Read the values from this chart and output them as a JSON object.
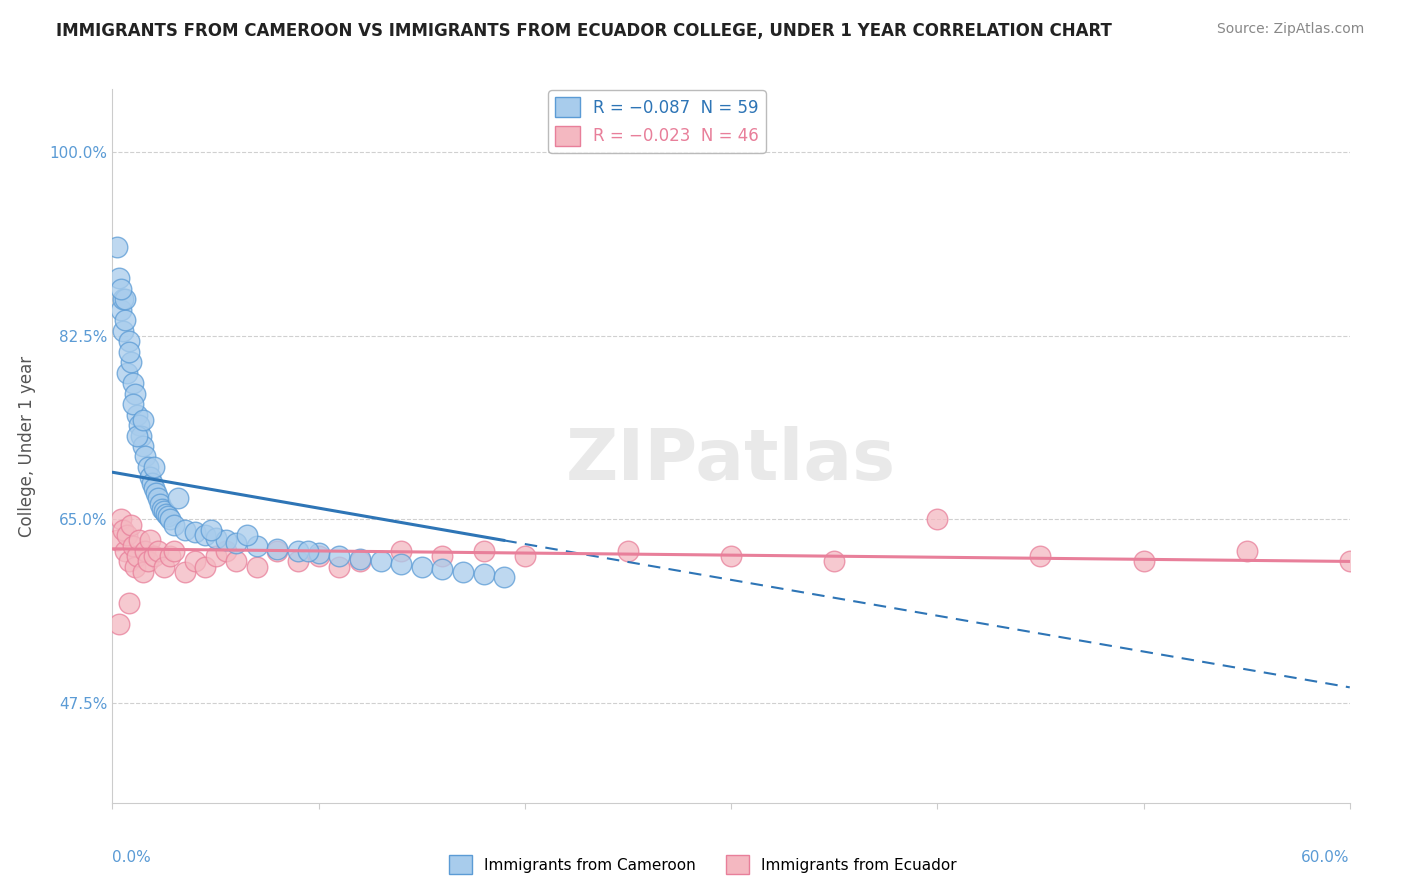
{
  "title": "IMMIGRANTS FROM CAMEROON VS IMMIGRANTS FROM ECUADOR COLLEGE, UNDER 1 YEAR CORRELATION CHART",
  "source": "Source: ZipAtlas.com",
  "ylabel": "College, Under 1 year",
  "yticks": [
    47.5,
    65.0,
    82.5,
    100.0
  ],
  "ytick_labels": [
    "47.5%",
    "65.0%",
    "82.5%",
    "100.0%"
  ],
  "xlim": [
    0.0,
    60.0
  ],
  "ylim": [
    38.0,
    106.0
  ],
  "blue_color": "#a8ccec",
  "blue_edge": "#5b9bd5",
  "pink_color": "#f4b8c1",
  "pink_edge": "#e87f9a",
  "blue_line_color": "#2e75b6",
  "pink_line_color": "#e87f9a",
  "background": "#ffffff",
  "grid_color": "#d0d0d0",
  "watermark_text": "ZIPatlas",
  "cameroon_x": [
    0.2,
    0.3,
    0.4,
    0.5,
    0.5,
    0.6,
    0.7,
    0.8,
    0.9,
    1.0,
    1.1,
    1.2,
    1.3,
    1.4,
    1.5,
    1.6,
    1.7,
    1.8,
    1.9,
    2.0,
    2.1,
    2.2,
    2.3,
    2.4,
    2.5,
    2.6,
    2.7,
    2.8,
    3.0,
    3.5,
    4.0,
    4.5,
    5.0,
    5.5,
    6.0,
    7.0,
    8.0,
    9.0,
    10.0,
    11.0,
    12.0,
    13.0,
    14.0,
    15.0,
    16.0,
    17.0,
    18.0,
    19.0,
    1.0,
    1.2,
    0.8,
    0.6,
    2.0,
    1.5,
    0.4,
    3.2,
    4.8,
    6.5,
    9.5
  ],
  "cameroon_y": [
    91.0,
    88.0,
    85.0,
    86.0,
    83.0,
    84.0,
    79.0,
    82.0,
    80.0,
    78.0,
    77.0,
    75.0,
    74.0,
    73.0,
    72.0,
    71.0,
    70.0,
    69.0,
    68.5,
    68.0,
    67.5,
    67.0,
    66.5,
    66.0,
    65.8,
    65.5,
    65.3,
    65.0,
    64.5,
    64.0,
    63.8,
    63.5,
    63.2,
    63.0,
    62.8,
    62.5,
    62.2,
    62.0,
    61.8,
    61.5,
    61.2,
    61.0,
    60.8,
    60.5,
    60.3,
    60.0,
    59.8,
    59.5,
    76.0,
    73.0,
    81.0,
    86.0,
    70.0,
    74.5,
    87.0,
    67.0,
    64.0,
    63.5,
    62.0
  ],
  "ecuador_x": [
    0.2,
    0.4,
    0.5,
    0.6,
    0.7,
    0.8,
    0.9,
    1.0,
    1.1,
    1.2,
    1.3,
    1.5,
    1.6,
    1.7,
    1.8,
    2.0,
    2.2,
    2.5,
    2.8,
    3.0,
    3.5,
    4.0,
    4.5,
    5.0,
    5.5,
    6.0,
    7.0,
    8.0,
    9.0,
    10.0,
    11.0,
    12.0,
    14.0,
    16.0,
    18.0,
    20.0,
    25.0,
    30.0,
    35.0,
    40.0,
    45.0,
    50.0,
    55.0,
    60.0,
    0.3,
    0.8
  ],
  "ecuador_y": [
    63.0,
    65.0,
    64.0,
    62.0,
    63.5,
    61.0,
    64.5,
    62.5,
    60.5,
    61.5,
    63.0,
    60.0,
    62.0,
    61.0,
    63.0,
    61.5,
    62.0,
    60.5,
    61.5,
    62.0,
    60.0,
    61.0,
    60.5,
    61.5,
    62.0,
    61.0,
    60.5,
    62.0,
    61.0,
    61.5,
    60.5,
    61.0,
    62.0,
    61.5,
    62.0,
    61.5,
    62.0,
    61.5,
    61.0,
    65.0,
    61.5,
    61.0,
    62.0,
    61.0,
    55.0,
    57.0
  ],
  "cam_line_x0": 0.0,
  "cam_line_y0": 69.5,
  "cam_line_x1": 19.0,
  "cam_line_y1": 63.0,
  "ecu_line_x0": 0.0,
  "ecu_line_y0": 62.2,
  "ecu_line_x1": 60.0,
  "ecu_line_y1": 61.0,
  "cam_dashed_x0": 19.0,
  "cam_dashed_y0": 63.0,
  "cam_dashed_x1": 60.0,
  "cam_dashed_y1": 49.0
}
